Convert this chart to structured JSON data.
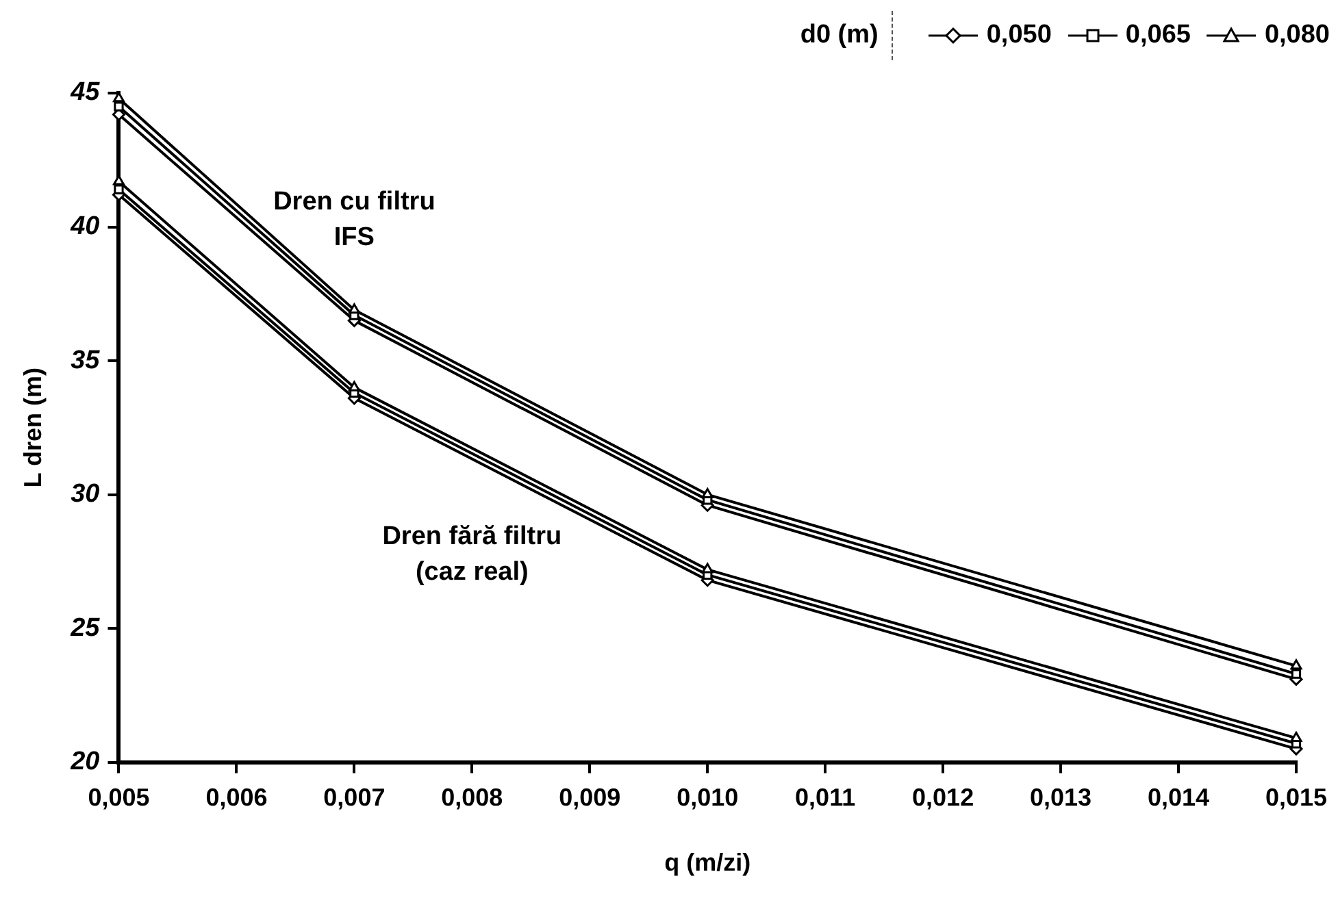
{
  "chart_data": {
    "type": "line",
    "xlabel": "q (m/zi)",
    "ylabel": "L dren (m)",
    "legend_title": "d0 (m)",
    "legend": "top right",
    "grid": false,
    "line_style": "solid",
    "x": [
      0.005,
      0.007,
      0.01,
      0.015
    ],
    "xlim": [
      0.005,
      0.015
    ],
    "xticks": [
      {
        "value": 0.005,
        "label": "0,005"
      },
      {
        "value": 0.006,
        "label": "0,006"
      },
      {
        "value": 0.007,
        "label": "0,007"
      },
      {
        "value": 0.008,
        "label": "0,008"
      },
      {
        "value": 0.009,
        "label": "0,009"
      },
      {
        "value": 0.01,
        "label": "0,010"
      },
      {
        "value": 0.011,
        "label": "0,011"
      },
      {
        "value": 0.012,
        "label": "0,012"
      },
      {
        "value": 0.013,
        "label": "0,013"
      },
      {
        "value": 0.014,
        "label": "0,014"
      },
      {
        "value": 0.015,
        "label": "0,015"
      }
    ],
    "ylim": [
      20,
      45
    ],
    "yticks": [
      20,
      25,
      30,
      35,
      40,
      45
    ],
    "series": [
      {
        "name": "0,050",
        "color": "#000000",
        "marker": "diamond",
        "values": [
          44.2,
          36.5,
          29.6,
          23.1
        ]
      },
      {
        "name": "0,065",
        "color": "#000000",
        "marker": "square",
        "values": [
          44.5,
          36.7,
          29.8,
          23.3
        ]
      },
      {
        "name": "0,080",
        "color": "#000000",
        "marker": "triangle",
        "values": [
          44.8,
          36.9,
          30.0,
          23.6
        ]
      },
      {
        "color": "#000000",
        "marker": "diamond",
        "values": [
          41.2,
          33.6,
          26.8,
          20.5
        ]
      },
      {
        "color": "#000000",
        "marker": "square",
        "values": [
          41.4,
          33.8,
          27.0,
          20.7
        ]
      },
      {
        "color": "#000000",
        "marker": "triangle",
        "values": [
          41.7,
          34.0,
          27.2,
          20.9
        ]
      }
    ],
    "annotations": [
      "Dren cu filtru\nIFS",
      "Dren fără filtru\n(caz real)"
    ]
  }
}
